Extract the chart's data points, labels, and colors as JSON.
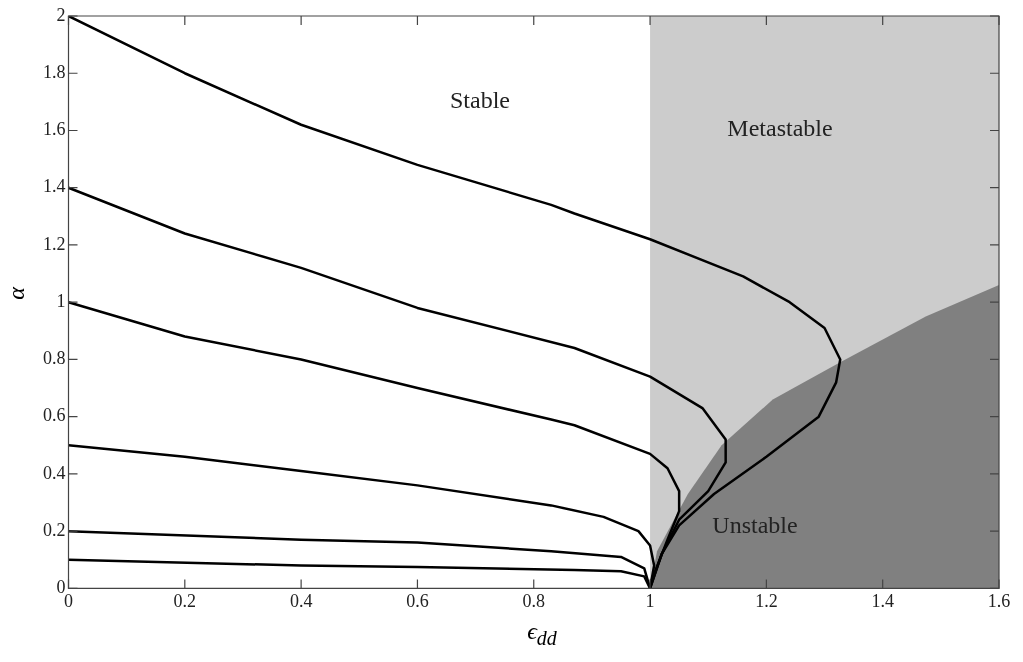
{
  "chart_data": {
    "type": "line",
    "xlabel": "ϵ$_{dd}$",
    "ylabel": "α",
    "xlim": [
      0,
      1.6
    ],
    "ylim": [
      0,
      2
    ],
    "xticks": [
      0,
      0.2,
      0.4,
      0.6,
      0.8,
      1,
      1.2,
      1.4,
      1.6
    ],
    "yticks": [
      0,
      0.2,
      0.4,
      0.6,
      0.8,
      1,
      1.2,
      1.4,
      1.6,
      1.8,
      2
    ],
    "grid": false,
    "legend": false,
    "marker": "none",
    "line_style": "solid",
    "bands": [
      {
        "axis": "x",
        "from": 1,
        "to": 1.6,
        "color": "#cccccc"
      }
    ],
    "annotations": [
      "Stable",
      "Metastable",
      "Unstable"
    ],
    "series": [
      {
        "type": "area",
        "color": "#808080",
        "x": [
          1,
          1.012,
          1.065,
          1.123,
          1.211,
          1.327,
          1.474,
          1.6
        ],
        "values": [
          0,
          0.13,
          0.33,
          0.5,
          0.66,
          0.79,
          0.95,
          1.06
        ]
      },
      {
        "color": "#000000",
        "x": [
          0,
          0.2,
          0.4,
          0.6,
          0.83,
          0.87,
          1,
          1.16,
          1.24,
          1.3,
          1.327,
          1.32,
          1.29,
          1.2,
          1.11,
          1.05,
          1.02,
          1
        ],
        "values": [
          2,
          1.8,
          1.62,
          1.48,
          1.34,
          1.31,
          1.22,
          1.09,
          1,
          0.91,
          0.8,
          0.72,
          0.6,
          0.46,
          0.33,
          0.22,
          0.12,
          0
        ]
      },
      {
        "color": "#000000",
        "x": [
          0,
          0.2,
          0.4,
          0.6,
          0.87,
          1,
          1.09,
          1.13,
          1.13,
          1.1,
          1.05,
          1.02,
          1
        ],
        "values": [
          1.4,
          1.24,
          1.12,
          0.98,
          0.84,
          0.74,
          0.63,
          0.52,
          0.44,
          0.34,
          0.24,
          0.12,
          0
        ]
      },
      {
        "color": "#000000",
        "x": [
          0,
          0.2,
          0.4,
          0.6,
          0.83,
          0.87,
          1,
          1.03,
          1.05,
          1.05,
          1.03,
          1.003,
          1
        ],
        "values": [
          1,
          0.88,
          0.8,
          0.7,
          0.59,
          0.57,
          0.47,
          0.42,
          0.34,
          0.27,
          0.17,
          0.03,
          0
        ]
      },
      {
        "color": "#000000",
        "x": [
          0,
          0.2,
          0.4,
          0.6,
          0.83,
          0.92,
          0.98,
          1,
          1.007,
          1
        ],
        "values": [
          0.5,
          0.46,
          0.41,
          0.36,
          0.29,
          0.25,
          0.2,
          0.15,
          0.08,
          0
        ]
      },
      {
        "color": "#000000",
        "x": [
          0,
          0.4,
          0.6,
          0.83,
          0.95,
          0.99,
          1
        ],
        "values": [
          0.2,
          0.17,
          0.16,
          0.13,
          0.11,
          0.07,
          0
        ]
      },
      {
        "color": "#000000",
        "x": [
          0,
          0.4,
          0.6,
          0.87,
          0.95,
          0.99,
          1
        ],
        "values": [
          0.1,
          0.08,
          0.075,
          0.064,
          0.06,
          0.042,
          0
        ]
      }
    ]
  }
}
